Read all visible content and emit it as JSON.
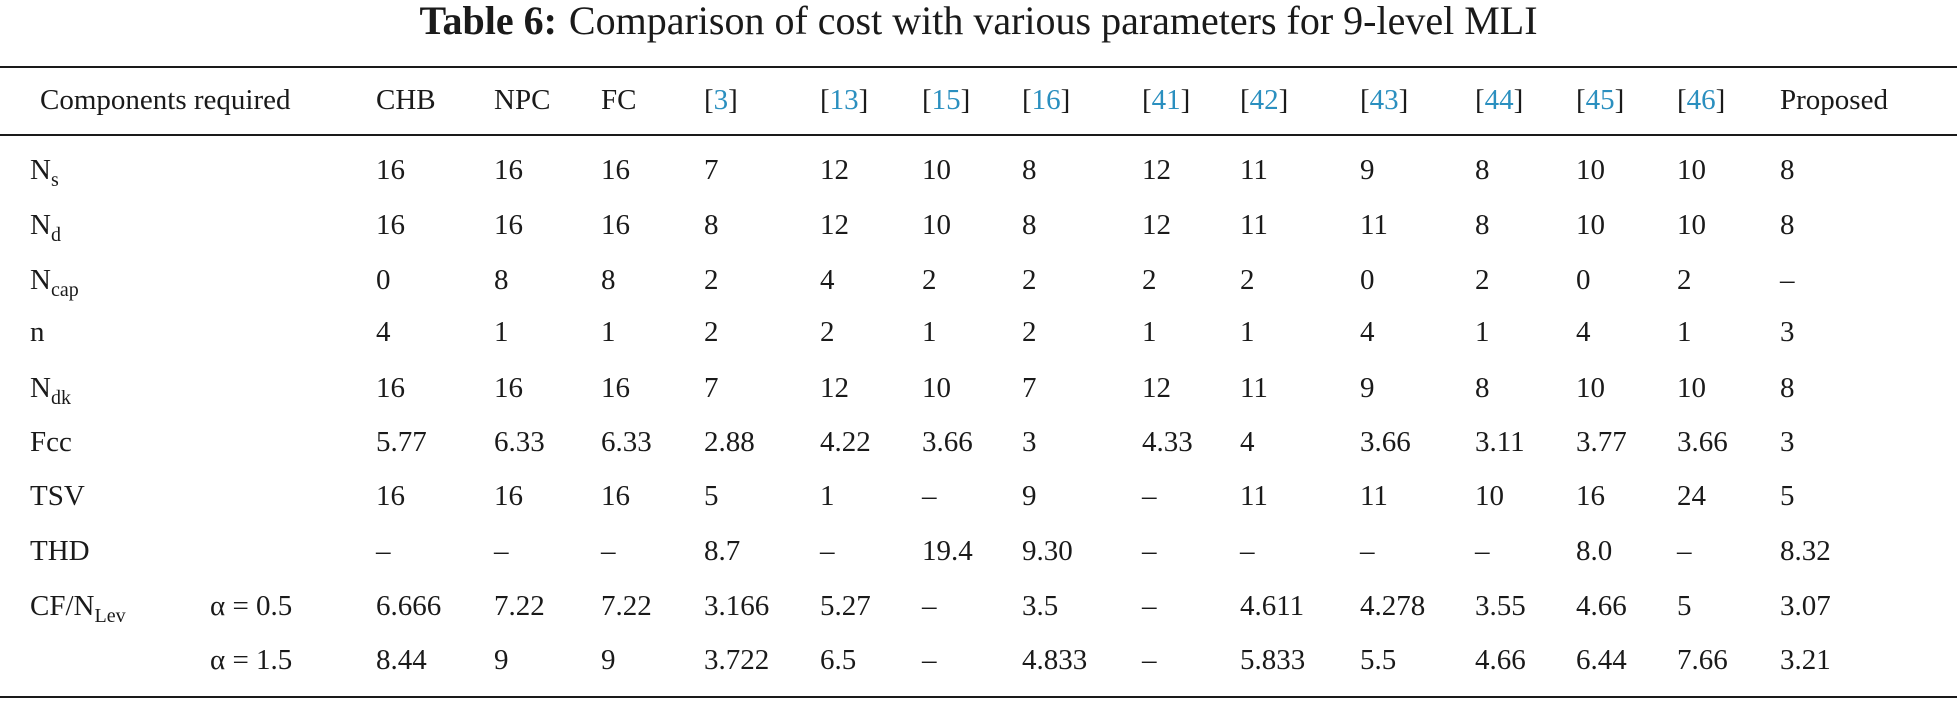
{
  "caption": {
    "label": "Table 6:",
    "text": "Comparison of cost with various parameters for 9-level MLI"
  },
  "header": {
    "components": "Components required",
    "columns": [
      {
        "text": "CHB",
        "ref": false
      },
      {
        "text": "NPC",
        "ref": false
      },
      {
        "text": "FC",
        "ref": false
      },
      {
        "text": "3",
        "ref": true
      },
      {
        "text": "13",
        "ref": true
      },
      {
        "text": "15",
        "ref": true
      },
      {
        "text": "16",
        "ref": true
      },
      {
        "text": "41",
        "ref": true
      },
      {
        "text": "42",
        "ref": true
      },
      {
        "text": "43",
        "ref": true
      },
      {
        "text": "44",
        "ref": true
      },
      {
        "text": "45",
        "ref": true
      },
      {
        "text": "46",
        "ref": true
      },
      {
        "text": "Proposed",
        "ref": false
      }
    ]
  },
  "rows": [
    {
      "base": "N",
      "sub": "s",
      "param": "",
      "values": [
        "16",
        "16",
        "16",
        "7",
        "12",
        "10",
        "8",
        "12",
        "11",
        "9",
        "8",
        "10",
        "10",
        "8"
      ]
    },
    {
      "base": "N",
      "sub": "d",
      "param": "",
      "values": [
        "16",
        "16",
        "16",
        "8",
        "12",
        "10",
        "8",
        "12",
        "11",
        "11",
        "8",
        "10",
        "10",
        "8"
      ]
    },
    {
      "base": "N",
      "sub": "cap",
      "param": "",
      "values": [
        "0",
        "8",
        "8",
        "2",
        "4",
        "2",
        "2",
        "2",
        "2",
        "0",
        "2",
        "0",
        "2",
        "–"
      ]
    },
    {
      "base": "n",
      "sub": "",
      "param": "",
      "values": [
        "4",
        "1",
        "1",
        "2",
        "2",
        "1",
        "2",
        "1",
        "1",
        "4",
        "1",
        "4",
        "1",
        "3"
      ]
    },
    {
      "base": "N",
      "sub": "dk",
      "param": "",
      "values": [
        "16",
        "16",
        "16",
        "7",
        "12",
        "10",
        "7",
        "12",
        "11",
        "9",
        "8",
        "10",
        "10",
        "8"
      ]
    },
    {
      "base": "Fcc",
      "sub": "",
      "param": "",
      "values": [
        "5.77",
        "6.33",
        "6.33",
        "2.88",
        "4.22",
        "3.66",
        "3",
        "4.33",
        "4",
        "3.66",
        "3.11",
        "3.77",
        "3.66",
        "3"
      ]
    },
    {
      "base": "TSV",
      "sub": "",
      "param": "",
      "values": [
        "16",
        "16",
        "16",
        "5",
        "1",
        "–",
        "9",
        "–",
        "11",
        "11",
        "10",
        "16",
        "24",
        "5"
      ]
    },
    {
      "base": "THD",
      "sub": "",
      "param": "",
      "values": [
        "–",
        "–",
        "–",
        "8.7",
        "–",
        "19.4",
        "9.30",
        "–",
        "–",
        "–",
        "–",
        "8.0",
        "–",
        "8.32"
      ]
    },
    {
      "base": "CF/N",
      "sub": "Lev",
      "param": "α = 0.5",
      "values": [
        "6.666",
        "7.22",
        "7.22",
        "3.166",
        "5.27",
        "–",
        "3.5",
        "–",
        "4.611",
        "4.278",
        "3.55",
        "4.66",
        "5",
        "3.07"
      ]
    },
    {
      "base": "",
      "sub": "",
      "param": "α = 1.5",
      "values": [
        "8.44",
        "9",
        "9",
        "3.722",
        "6.5",
        "–",
        "4.833",
        "–",
        "5.833",
        "5.5",
        "4.66",
        "6.44",
        "7.66",
        "3.21"
      ]
    }
  ]
}
